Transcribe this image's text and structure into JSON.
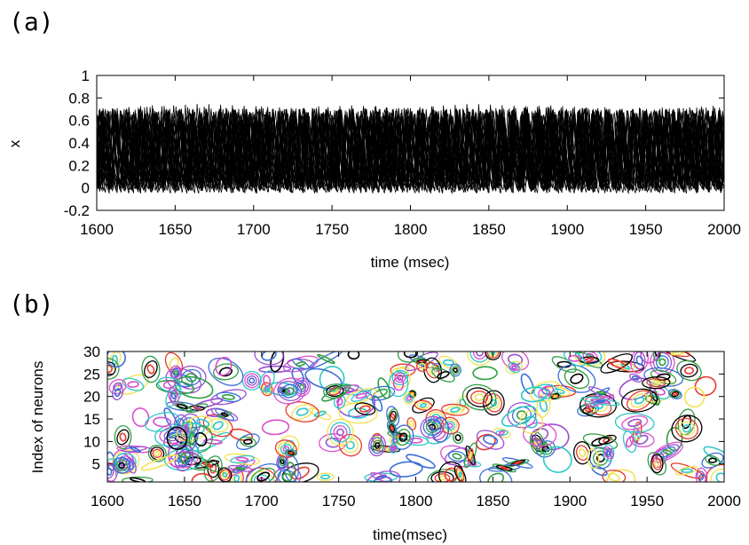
{
  "panels": {
    "a": {
      "label": "(a)"
    },
    "b": {
      "label": "(b)"
    }
  },
  "chart_data": [
    {
      "type": "line",
      "panel": "(a)",
      "title": "",
      "xlabel": "time (msec)",
      "ylabel": "x",
      "xlim": [
        1600,
        2000
      ],
      "ylim": [
        -0.2,
        1
      ],
      "xticks": [
        1600,
        1650,
        1700,
        1750,
        1800,
        1850,
        1900,
        1950,
        2000
      ],
      "yticks": [
        -0.2,
        0,
        0.2,
        0.4,
        0.6,
        0.8,
        1
      ],
      "series_count": 30,
      "value_range": [
        -0.05,
        0.75
      ],
      "oscillation_period_msec": 8,
      "line_color": "#000000",
      "grid": false,
      "legend": "none"
    },
    {
      "type": "heatmap",
      "panel": "(b)",
      "title": "",
      "xlabel": "time(msec)",
      "ylabel": "Index of neurons",
      "xlim": [
        1600,
        2000
      ],
      "ylim": [
        1,
        30
      ],
      "xticks": [
        1600,
        1650,
        1700,
        1750,
        1800,
        1850,
        1900,
        1950,
        2000
      ],
      "yticks": [
        5,
        10,
        15,
        20,
        25,
        30
      ],
      "style": "contour",
      "contour_colors": [
        "#e8382a",
        "#000000",
        "#2f9e44",
        "#3b6fd6",
        "#9b4fd0",
        "#d94fd0",
        "#2cc7c7",
        "#f2e250"
      ],
      "grid": false,
      "legend": "none"
    }
  ]
}
